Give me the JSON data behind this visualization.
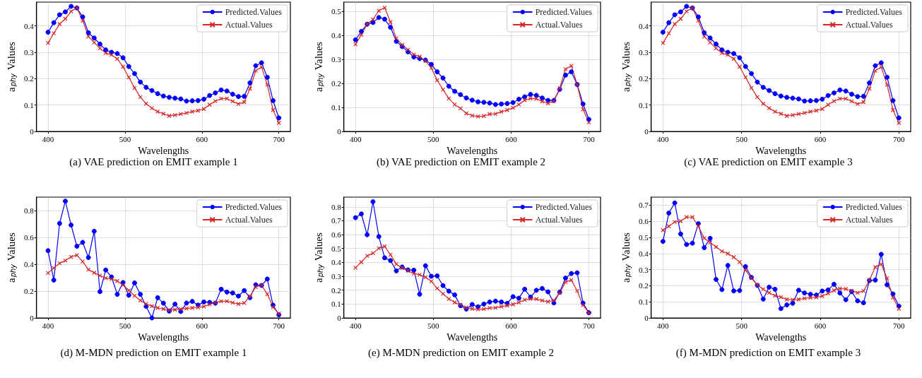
{
  "chart_data": [
    {
      "type": "line",
      "title": "(a) VAE prediction on EMIT example 1",
      "xlabel": "Wavelengths",
      "ylabel": "a$_{phy}$ Values",
      "x": [
        400,
        407.5,
        415,
        422.5,
        430,
        437.5,
        445,
        452.5,
        460,
        467.5,
        475,
        482.5,
        490,
        497.5,
        505,
        512.5,
        520,
        527.5,
        535,
        542.5,
        550,
        557.5,
        565,
        572.5,
        580,
        587.5,
        595,
        602.5,
        610,
        617.5,
        625,
        632.5,
        640,
        647.5,
        655,
        662.5,
        670,
        677.5,
        685,
        692.5,
        700
      ],
      "xlim": [
        385,
        715
      ],
      "xticks": [
        400,
        500,
        600,
        700
      ],
      "ylim": [
        0,
        0.49
      ],
      "yticks": [
        0.0,
        0.1,
        0.2,
        0.3,
        0.4
      ],
      "grid": true,
      "legend": "top right",
      "series": [
        {
          "name": "Predicted.Values",
          "color": "#0000ff",
          "marker": "circle",
          "values": [
            0.376,
            0.412,
            0.442,
            0.453,
            0.474,
            0.468,
            0.434,
            0.374,
            0.354,
            0.331,
            0.309,
            0.3,
            0.295,
            0.279,
            0.246,
            0.219,
            0.187,
            0.167,
            0.155,
            0.143,
            0.134,
            0.129,
            0.126,
            0.123,
            0.115,
            0.116,
            0.117,
            0.122,
            0.136,
            0.146,
            0.157,
            0.153,
            0.141,
            0.132,
            0.133,
            0.184,
            0.249,
            0.26,
            0.205,
            0.117,
            0.051
          ]
        },
        {
          "name": "Actual.Values",
          "color": "#d62728",
          "marker": "cross",
          "values": [
            0.335,
            0.372,
            0.407,
            0.427,
            0.455,
            0.468,
            0.42,
            0.36,
            0.337,
            0.315,
            0.297,
            0.29,
            0.275,
            0.245,
            0.205,
            0.165,
            0.13,
            0.105,
            0.088,
            0.075,
            0.067,
            0.059,
            0.062,
            0.066,
            0.07,
            0.075,
            0.079,
            0.085,
            0.101,
            0.115,
            0.124,
            0.124,
            0.114,
            0.104,
            0.111,
            0.162,
            0.23,
            0.244,
            0.177,
            0.081,
            0.032
          ]
        }
      ]
    },
    {
      "type": "line",
      "title": "(b) VAE prediction on EMIT example 2",
      "xlabel": "Wavelengths",
      "ylabel": "a$_{phy}$ Values",
      "x": [
        400,
        407.5,
        415,
        422.5,
        430,
        437.5,
        445,
        452.5,
        460,
        467.5,
        475,
        482.5,
        490,
        497.5,
        505,
        512.5,
        520,
        527.5,
        535,
        542.5,
        550,
        557.5,
        565,
        572.5,
        580,
        587.5,
        595,
        602.5,
        610,
        617.5,
        625,
        632.5,
        640,
        647.5,
        655,
        662.5,
        670,
        677.5,
        685,
        692.5,
        700
      ],
      "xlim": [
        385,
        715
      ],
      "xticks": [
        400,
        500,
        600,
        700
      ],
      "ylim": [
        0,
        0.538
      ],
      "yticks": [
        0.0,
        0.1,
        0.2,
        0.3,
        0.4,
        0.5
      ],
      "grid": true,
      "legend": "top right",
      "series": [
        {
          "name": "Predicted.Values",
          "color": "#0000ff",
          "marker": "circle",
          "values": [
            0.381,
            0.416,
            0.446,
            0.453,
            0.474,
            0.467,
            0.433,
            0.375,
            0.353,
            0.331,
            0.31,
            0.303,
            0.297,
            0.279,
            0.248,
            0.222,
            0.188,
            0.167,
            0.153,
            0.139,
            0.13,
            0.123,
            0.121,
            0.118,
            0.112,
            0.114,
            0.116,
            0.12,
            0.134,
            0.144,
            0.154,
            0.15,
            0.139,
            0.129,
            0.129,
            0.175,
            0.234,
            0.248,
            0.195,
            0.114,
            0.05
          ]
        },
        {
          "name": "Actual.Values",
          "color": "#d62728",
          "marker": "cross",
          "values": [
            0.362,
            0.402,
            0.447,
            0.466,
            0.502,
            0.515,
            0.455,
            0.387,
            0.36,
            0.34,
            0.32,
            0.311,
            0.293,
            0.264,
            0.213,
            0.174,
            0.137,
            0.112,
            0.096,
            0.075,
            0.066,
            0.062,
            0.064,
            0.072,
            0.073,
            0.082,
            0.089,
            0.098,
            0.112,
            0.13,
            0.137,
            0.136,
            0.125,
            0.117,
            0.126,
            0.18,
            0.259,
            0.273,
            0.195,
            0.092,
            0.037
          ]
        }
      ]
    },
    {
      "type": "line",
      "title": "(c) VAE prediction on EMIT example 3",
      "xlabel": "Wavelengths",
      "ylabel": "a$_{phy}$ Values",
      "x": [
        400,
        407.5,
        415,
        422.5,
        430,
        437.5,
        445,
        452.5,
        460,
        467.5,
        475,
        482.5,
        490,
        497.5,
        505,
        512.5,
        520,
        527.5,
        535,
        542.5,
        550,
        557.5,
        565,
        572.5,
        580,
        587.5,
        595,
        602.5,
        610,
        617.5,
        625,
        632.5,
        640,
        647.5,
        655,
        662.5,
        670,
        677.5,
        685,
        692.5,
        700
      ],
      "xlim": [
        385,
        715
      ],
      "xticks": [
        400,
        500,
        600,
        700
      ],
      "ylim": [
        0,
        0.49
      ],
      "yticks": [
        0.0,
        0.1,
        0.2,
        0.3,
        0.4
      ],
      "grid": true,
      "legend": "top right",
      "series": [
        {
          "name": "Predicted.Values",
          "color": "#0000ff",
          "marker": "circle",
          "values": [
            0.376,
            0.412,
            0.442,
            0.453,
            0.474,
            0.468,
            0.434,
            0.374,
            0.354,
            0.331,
            0.309,
            0.3,
            0.295,
            0.279,
            0.246,
            0.219,
            0.187,
            0.167,
            0.155,
            0.143,
            0.134,
            0.129,
            0.126,
            0.123,
            0.115,
            0.116,
            0.117,
            0.122,
            0.136,
            0.146,
            0.157,
            0.153,
            0.141,
            0.132,
            0.133,
            0.184,
            0.249,
            0.26,
            0.205,
            0.117,
            0.051
          ]
        },
        {
          "name": "Actual.Values",
          "color": "#d62728",
          "marker": "cross",
          "values": [
            0.335,
            0.372,
            0.407,
            0.427,
            0.455,
            0.468,
            0.42,
            0.36,
            0.337,
            0.315,
            0.297,
            0.29,
            0.275,
            0.245,
            0.205,
            0.165,
            0.13,
            0.105,
            0.088,
            0.075,
            0.067,
            0.059,
            0.062,
            0.066,
            0.07,
            0.075,
            0.079,
            0.085,
            0.101,
            0.115,
            0.124,
            0.124,
            0.114,
            0.104,
            0.111,
            0.162,
            0.23,
            0.244,
            0.177,
            0.081,
            0.032
          ]
        }
      ]
    },
    {
      "type": "line",
      "title": "(d) M-MDN prediction on EMIT example 1",
      "xlabel": "Wavelengths",
      "ylabel": "a$_{phy}$ Values",
      "x": [
        400,
        407.5,
        415,
        422.5,
        430,
        437.5,
        445,
        452.5,
        460,
        467.5,
        475,
        482.5,
        490,
        497.5,
        505,
        512.5,
        520,
        527.5,
        535,
        542.5,
        550,
        557.5,
        565,
        572.5,
        580,
        587.5,
        595,
        602.5,
        610,
        617.5,
        625,
        632.5,
        640,
        647.5,
        655,
        662.5,
        670,
        677.5,
        685,
        692.5,
        700
      ],
      "xlim": [
        385,
        715
      ],
      "xticks": [
        400,
        500,
        600,
        700
      ],
      "ylim": [
        0,
        0.9
      ],
      "yticks": [
        0.0,
        0.2,
        0.4,
        0.6,
        0.8
      ],
      "grid": true,
      "legend": "top right",
      "series": [
        {
          "name": "Predicted.Values",
          "color": "#0000ff",
          "marker": "circle",
          "values": [
            0.501,
            0.282,
            0.704,
            0.87,
            0.692,
            0.534,
            0.563,
            0.45,
            0.646,
            0.196,
            0.357,
            0.305,
            0.176,
            0.264,
            0.169,
            0.261,
            0.176,
            0.086,
            0.0,
            0.151,
            0.11,
            0.051,
            0.103,
            0.048,
            0.111,
            0.123,
            0.096,
            0.119,
            0.116,
            0.11,
            0.214,
            0.193,
            0.186,
            0.163,
            0.204,
            0.151,
            0.247,
            0.242,
            0.29,
            0.095,
            0.023
          ]
        },
        {
          "name": "Actual.Values",
          "color": "#d62728",
          "marker": "cross",
          "values": [
            0.335,
            0.372,
            0.407,
            0.427,
            0.455,
            0.468,
            0.42,
            0.36,
            0.337,
            0.315,
            0.297,
            0.29,
            0.275,
            0.245,
            0.205,
            0.165,
            0.13,
            0.105,
            0.088,
            0.075,
            0.067,
            0.059,
            0.062,
            0.066,
            0.07,
            0.075,
            0.079,
            0.085,
            0.101,
            0.115,
            0.124,
            0.124,
            0.114,
            0.104,
            0.111,
            0.162,
            0.23,
            0.244,
            0.177,
            0.081,
            0.032
          ]
        }
      ]
    },
    {
      "type": "line",
      "title": "(e) M-MDN prediction on EMIT example 2",
      "xlabel": "Wavelengths",
      "ylabel": "a$_{phy}$ Values",
      "x": [
        400,
        407.5,
        415,
        422.5,
        430,
        437.5,
        445,
        452.5,
        460,
        467.5,
        475,
        482.5,
        490,
        497.5,
        505,
        512.5,
        520,
        527.5,
        535,
        542.5,
        550,
        557.5,
        565,
        572.5,
        580,
        587.5,
        595,
        602.5,
        610,
        617.5,
        625,
        632.5,
        640,
        647.5,
        655,
        662.5,
        670,
        677.5,
        685,
        692.5,
        700
      ],
      "xlim": [
        385,
        715
      ],
      "xticks": [
        400,
        500,
        600,
        700
      ],
      "ylim": [
        0,
        0.87
      ],
      "yticks": [
        0.0,
        0.1,
        0.2,
        0.3,
        0.4,
        0.5,
        0.6,
        0.7,
        0.8
      ],
      "grid": true,
      "legend": "top right",
      "series": [
        {
          "name": "Predicted.Values",
          "color": "#0000ff",
          "marker": "circle",
          "values": [
            0.722,
            0.749,
            0.599,
            0.837,
            0.586,
            0.433,
            0.413,
            0.339,
            0.367,
            0.346,
            0.344,
            0.171,
            0.376,
            0.3,
            0.303,
            0.233,
            0.193,
            0.166,
            0.088,
            0.064,
            0.097,
            0.08,
            0.1,
            0.115,
            0.121,
            0.115,
            0.105,
            0.153,
            0.142,
            0.207,
            0.15,
            0.199,
            0.212,
            0.188,
            0.108,
            0.186,
            0.287,
            0.32,
            0.325,
            0.107,
            0.038
          ]
        },
        {
          "name": "Actual.Values",
          "color": "#d62728",
          "marker": "cross",
          "values": [
            0.362,
            0.402,
            0.447,
            0.466,
            0.502,
            0.515,
            0.455,
            0.387,
            0.36,
            0.34,
            0.32,
            0.311,
            0.293,
            0.264,
            0.213,
            0.174,
            0.137,
            0.112,
            0.096,
            0.075,
            0.066,
            0.062,
            0.064,
            0.072,
            0.073,
            0.082,
            0.089,
            0.098,
            0.112,
            0.13,
            0.137,
            0.136,
            0.125,
            0.117,
            0.126,
            0.18,
            0.259,
            0.273,
            0.195,
            0.092,
            0.037
          ]
        }
      ]
    },
    {
      "type": "line",
      "title": "(f) M-MDN prediction on EMIT example 3",
      "xlabel": "Wavelengths",
      "ylabel": "a$_{phy}$ Values",
      "x": [
        400,
        407.5,
        415,
        422.5,
        430,
        437.5,
        445,
        452.5,
        460,
        467.5,
        475,
        482.5,
        490,
        497.5,
        505,
        512.5,
        520,
        527.5,
        535,
        542.5,
        550,
        557.5,
        565,
        572.5,
        580,
        587.5,
        595,
        602.5,
        610,
        617.5,
        625,
        632.5,
        640,
        647.5,
        655,
        662.5,
        670,
        677.5,
        685,
        692.5,
        700
      ],
      "xlim": [
        385,
        715
      ],
      "xticks": [
        400,
        500,
        600,
        700
      ],
      "ylim": [
        0,
        0.75
      ],
      "yticks": [
        0.0,
        0.1,
        0.2,
        0.3,
        0.4,
        0.5,
        0.6,
        0.7
      ],
      "grid": true,
      "legend": "top right",
      "series": [
        {
          "name": "Predicted.Values",
          "color": "#0000ff",
          "marker": "circle",
          "values": [
            0.475,
            0.651,
            0.714,
            0.521,
            0.456,
            0.464,
            0.585,
            0.436,
            0.494,
            0.239,
            0.176,
            0.326,
            0.168,
            0.17,
            0.319,
            0.252,
            0.202,
            0.117,
            0.191,
            0.178,
            0.058,
            0.081,
            0.091,
            0.172,
            0.155,
            0.147,
            0.142,
            0.167,
            0.174,
            0.209,
            0.155,
            0.113,
            0.163,
            0.106,
            0.094,
            0.232,
            0.235,
            0.395,
            0.206,
            0.149,
            0.073
          ]
        },
        {
          "name": "Actual.Values",
          "color": "#d62728",
          "marker": "cross",
          "values": [
            0.545,
            0.569,
            0.596,
            0.601,
            0.626,
            0.626,
            0.569,
            0.495,
            0.469,
            0.441,
            0.414,
            0.399,
            0.377,
            0.347,
            0.296,
            0.247,
            0.206,
            0.178,
            0.156,
            0.138,
            0.129,
            0.115,
            0.113,
            0.115,
            0.121,
            0.126,
            0.128,
            0.136,
            0.152,
            0.171,
            0.182,
            0.18,
            0.168,
            0.156,
            0.167,
            0.235,
            0.316,
            0.334,
            0.246,
            0.126,
            0.057
          ]
        }
      ]
    }
  ]
}
